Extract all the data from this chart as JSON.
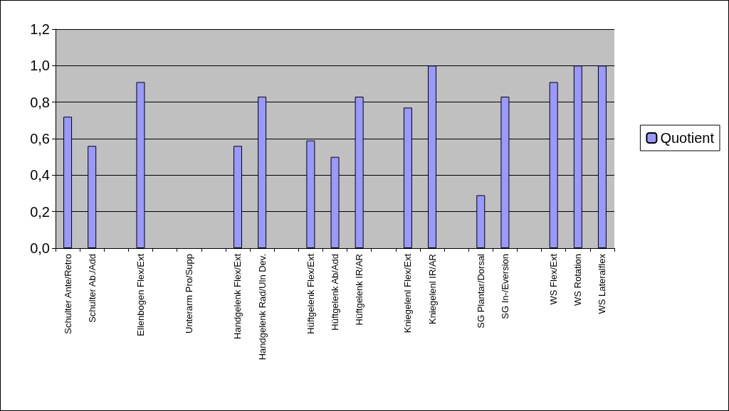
{
  "chart_data": {
    "type": "bar",
    "categories": [
      "Schulter Ante/Retro",
      "Schulter Ab./Add",
      null,
      "Ellenbogen Flex/Ext",
      null,
      "Unterarm Pro/Supp",
      null,
      "Handgelenk Flex/Ext",
      "Handgelenk Rad/Uln Dev.",
      null,
      "Hüftgelenk Flex/Ext",
      "Hüftgelenk Ab/Add",
      "Hüftgelenk IR/AR",
      null,
      "Kniegelenl Flex/Ext",
      "Kniegelenl IR/AR",
      null,
      "SG Plantar/Dorsal",
      "SG In-/Eversion",
      null,
      "WS Flex/Ext",
      "WS Rotation",
      "WS Lateralflex"
    ],
    "series": [
      {
        "name": "Quotient",
        "color": "#9999ff",
        "values": [
          0.72,
          0.56,
          null,
          0.91,
          null,
          null,
          null,
          0.56,
          0.83,
          null,
          0.59,
          0.5,
          0.83,
          null,
          0.77,
          1.0,
          null,
          0.29,
          0.83,
          null,
          0.91,
          1.0,
          1.0
        ]
      }
    ],
    "ylim": [
      0,
      1.2
    ],
    "yticks": [
      {
        "value": 0,
        "label": "0,0"
      },
      {
        "value": 0.2,
        "label": "0,2"
      },
      {
        "value": 0.4,
        "label": "0,4"
      },
      {
        "value": 0.6,
        "label": "0,6"
      },
      {
        "value": 0.8,
        "label": "0,8"
      },
      {
        "value": 1,
        "label": "1,0"
      },
      {
        "value": 1.2,
        "label": "1,2"
      }
    ],
    "grid": "y",
    "legend": "right"
  }
}
